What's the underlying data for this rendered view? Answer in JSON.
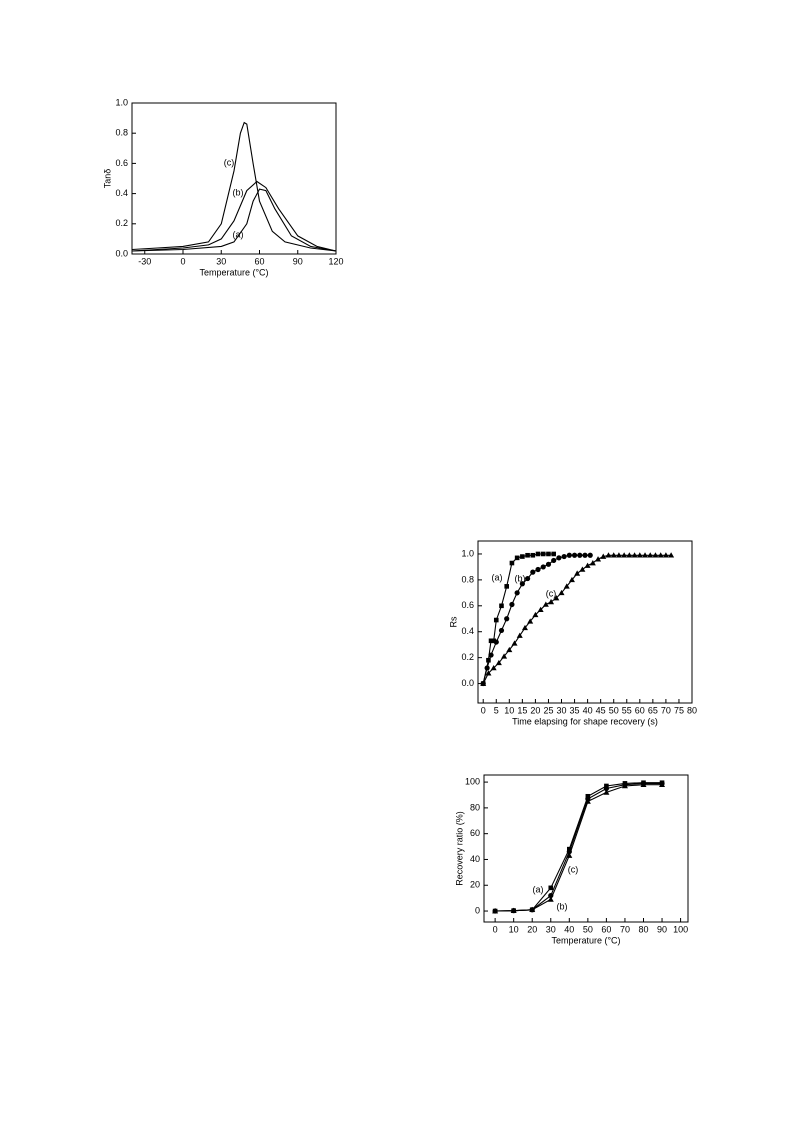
{
  "chart_data": [
    {
      "type": "line",
      "xlabel": "Temperature (°C)",
      "ylabel": "Tanδ",
      "xlim": [
        -40,
        120
      ],
      "xticks": [
        -30,
        0,
        30,
        60,
        90,
        120
      ],
      "ylim": [
        0,
        1.0
      ],
      "yticks": [
        {
          "value": 0,
          "label": "0.0"
        },
        0.2,
        0.4,
        0.6,
        0.8,
        {
          "value": 1.0,
          "label": "1.0"
        }
      ],
      "series": [
        {
          "name": "(a)",
          "color": "#000000",
          "x": [
            -40,
            0,
            30,
            40,
            50,
            55,
            60,
            65,
            72,
            85,
            100,
            120
          ],
          "values": [
            0.02,
            0.03,
            0.05,
            0.08,
            0.2,
            0.35,
            0.43,
            0.42,
            0.3,
            0.12,
            0.05,
            0.02
          ]
        },
        {
          "name": "(b)",
          "color": "#000000",
          "x": [
            -40,
            0,
            20,
            30,
            40,
            50,
            58,
            65,
            75,
            90,
            105,
            120
          ],
          "values": [
            0.02,
            0.04,
            0.06,
            0.1,
            0.22,
            0.42,
            0.48,
            0.44,
            0.3,
            0.12,
            0.05,
            0.02
          ]
        },
        {
          "name": "(c)",
          "color": "#000000",
          "x": [
            -40,
            -20,
            0,
            20,
            30,
            40,
            45,
            48,
            50,
            55,
            60,
            70,
            80,
            100,
            120
          ],
          "values": [
            0.03,
            0.04,
            0.05,
            0.08,
            0.2,
            0.55,
            0.8,
            0.87,
            0.86,
            0.6,
            0.35,
            0.15,
            0.08,
            0.04,
            0.02
          ]
        }
      ]
    },
    {
      "type": "line",
      "xlabel": "Time elapsing for shape recovery (s)",
      "ylabel": "Rs",
      "xlim": [
        -2,
        80
      ],
      "xticks": [
        0,
        5,
        10,
        15,
        20,
        25,
        30,
        35,
        40,
        45,
        50,
        55,
        60,
        65,
        70,
        75,
        80
      ],
      "ylim": [
        -0.15,
        1.1
      ],
      "yticks": [
        {
          "value": 0,
          "label": "0.0"
        },
        0.2,
        0.4,
        0.6,
        0.8,
        {
          "value": 1.0,
          "label": "1.0"
        }
      ],
      "series": [
        {
          "name": "(a)",
          "color": "#000000",
          "marker": "square",
          "x": [
            0,
            2,
            3,
            4,
            5,
            7,
            9,
            11,
            13,
            15,
            17,
            19,
            21,
            23,
            25,
            27
          ],
          "values": [
            0,
            0.18,
            0.33,
            0.33,
            0.49,
            0.6,
            0.75,
            0.93,
            0.97,
            0.98,
            0.99,
            0.99,
            1.0,
            1.0,
            1.0,
            1.0
          ]
        },
        {
          "name": "(b)",
          "color": "#000000",
          "marker": "circle",
          "x": [
            0,
            1.5,
            3,
            5,
            7,
            9,
            11,
            13,
            15,
            17,
            19,
            21,
            23,
            25,
            27,
            29,
            31,
            33,
            35,
            37,
            39,
            41
          ],
          "values": [
            0,
            0.12,
            0.22,
            0.32,
            0.41,
            0.5,
            0.61,
            0.7,
            0.77,
            0.81,
            0.86,
            0.88,
            0.9,
            0.92,
            0.95,
            0.97,
            0.98,
            0.99,
            0.99,
            0.99,
            0.99,
            0.99
          ]
        },
        {
          "name": "(c)",
          "color": "#000000",
          "marker": "triangle",
          "x": [
            0,
            2,
            4,
            6,
            8,
            10,
            12,
            14,
            16,
            18,
            20,
            22,
            24,
            26,
            28,
            30,
            32,
            34,
            36,
            38,
            40,
            42,
            44,
            46,
            48,
            50,
            52,
            54,
            56,
            58,
            60,
            62,
            64,
            66,
            68,
            70,
            72
          ],
          "values": [
            0,
            0.08,
            0.12,
            0.16,
            0.21,
            0.26,
            0.31,
            0.37,
            0.43,
            0.48,
            0.53,
            0.57,
            0.61,
            0.63,
            0.66,
            0.7,
            0.75,
            0.8,
            0.85,
            0.88,
            0.91,
            0.93,
            0.96,
            0.98,
            0.99,
            0.99,
            0.99,
            0.99,
            0.99,
            0.99,
            0.99,
            0.99,
            0.99,
            0.99,
            0.99,
            0.99,
            0.99
          ]
        }
      ]
    },
    {
      "type": "line",
      "xlabel": "Temperature (°C)",
      "ylabel": "Recovery ratio (%)",
      "xlim": [
        -6,
        104
      ],
      "xticks": [
        0,
        10,
        20,
        30,
        40,
        50,
        60,
        70,
        80,
        90,
        100
      ],
      "ylim": [
        -8.5,
        105.5
      ],
      "yticks": [
        0,
        20,
        40,
        60,
        80,
        100
      ],
      "series": [
        {
          "name": "(a)",
          "color": "#000000",
          "marker": "square",
          "x": [
            0,
            10,
            20,
            30,
            40,
            50,
            60,
            70,
            80,
            90
          ],
          "values": [
            0,
            0.3,
            1,
            18,
            48,
            89,
            97,
            99,
            99.5,
            99.5
          ]
        },
        {
          "name": "(b)",
          "color": "#000000",
          "marker": "circle",
          "x": [
            0,
            10,
            20,
            30,
            40,
            50,
            60,
            70,
            80,
            90
          ],
          "values": [
            0,
            0.3,
            1,
            12,
            46,
            87,
            95,
            98,
            99,
            99
          ]
        },
        {
          "name": "(c)",
          "color": "#000000",
          "marker": "triangle",
          "x": [
            0,
            10,
            20,
            30,
            40,
            50,
            60,
            70,
            80,
            90
          ],
          "values": [
            0,
            0.3,
            1,
            9,
            43,
            85,
            92,
            97,
            98,
            98
          ]
        }
      ]
    }
  ]
}
